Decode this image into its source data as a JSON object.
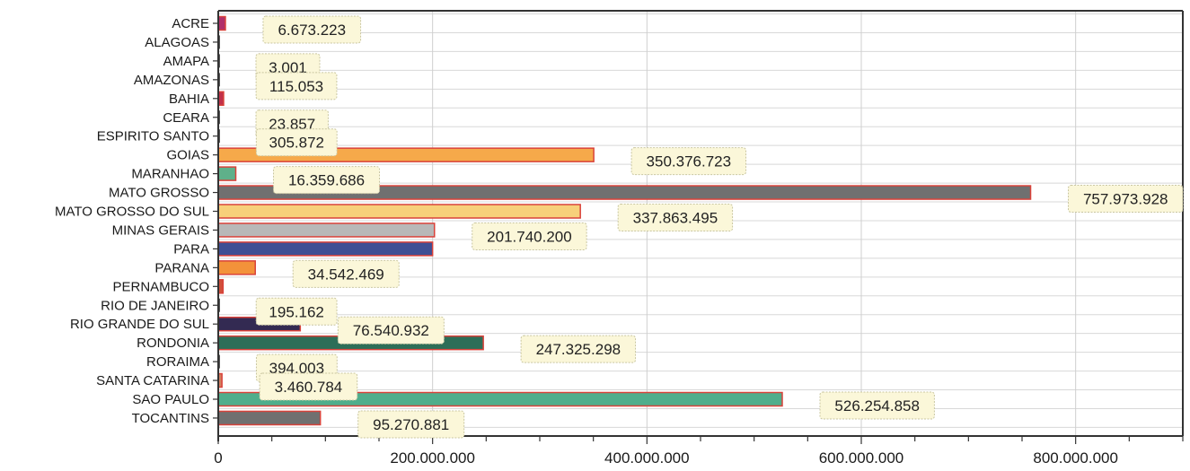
{
  "chart_data": {
    "type": "bar",
    "orientation": "horizontal",
    "categories": [
      "ACRE",
      "ALAGOAS",
      "AMAPA",
      "AMAZONAS",
      "BAHIA",
      "CEARA",
      "ESPIRITO SANTO",
      "GOIAS",
      "MARANHAO",
      "MATO GROSSO",
      "MATO GROSSO DO SUL",
      "MINAS GERAIS",
      "PARA",
      "PARANA",
      "PERNAMBUCO",
      "RIO DE JANEIRO",
      "RIO GRANDE DO SUL",
      "RONDONIA",
      "RORAIMA",
      "SANTA CATARINA",
      "SAO PAULO",
      "TOCANTINS"
    ],
    "values": [
      6673223,
      0,
      3001,
      115053,
      5000000,
      23857,
      305872,
      350376723,
      16359686,
      757973928,
      337863495,
      201740200,
      200000000,
      34542469,
      4500000,
      195162,
      76540932,
      247325298,
      394003,
      3460784,
      526254858,
      95270881
    ],
    "data_labels": [
      "6.673.223",
      null,
      "3.001",
      "115.053",
      null,
      "23.857",
      "305.872",
      "350.376.723",
      "16.359.686",
      "757.973.928",
      "337.863.495",
      "201.740.200",
      null,
      "34.542.469",
      null,
      "195.162",
      "76.540.932",
      "247.325.298",
      "394.003",
      "3.460.784",
      "526.254.858",
      "95.270.881"
    ],
    "bar_colors": [
      "#b0306a",
      "#555555",
      "#555555",
      "#555555",
      "#c0304a",
      "#555555",
      "#555555",
      "#f6a94a",
      "#5fb08a",
      "#707070",
      "#f7d07a",
      "#b8b8b8",
      "#3e4f94",
      "#f3923a",
      "#d0503a",
      "#555555",
      "#332a52",
      "#2d6e58",
      "#555555",
      "#d08060",
      "#4fae8c",
      "#707070"
    ],
    "xlim": [
      0,
      900000000
    ],
    "x_ticks": [
      0,
      200000000,
      400000000,
      600000000,
      800000000
    ],
    "x_tick_labels": [
      "0",
      "200.000.000",
      "400.000.000",
      "600.000.000",
      "800.000.000"
    ],
    "grid": true,
    "title": "",
    "xlabel": "",
    "ylabel": ""
  }
}
